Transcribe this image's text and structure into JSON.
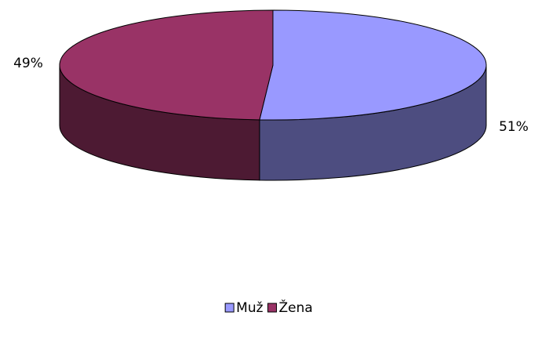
{
  "chart_data": {
    "type": "pie",
    "categories": [
      "Muž",
      "Žena"
    ],
    "values": [
      51,
      49
    ],
    "value_labels": [
      "51%",
      "49%"
    ],
    "colors": [
      "#9999ff",
      "#993366"
    ],
    "legend": "bottom"
  }
}
